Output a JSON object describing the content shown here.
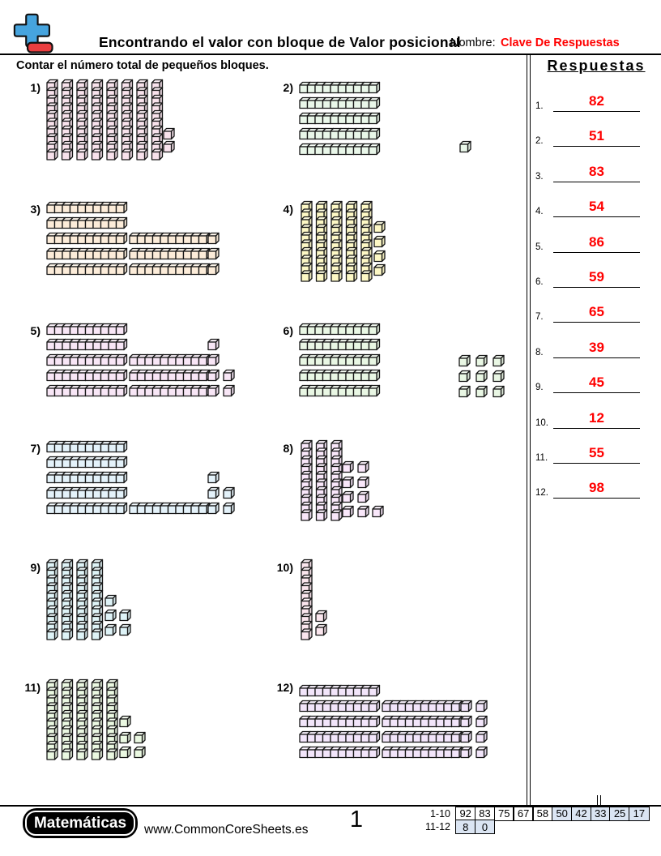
{
  "header": {
    "title": "Encontrando el valor con bloque de Valor posicional",
    "name_label": "Nombre:",
    "name_value": "Clave De Respuestas",
    "instruction": "Contar el número total de pequeños bloques."
  },
  "answers": {
    "heading": "Respuestas",
    "items": [
      {
        "n": "1.",
        "v": "82"
      },
      {
        "n": "2.",
        "v": "51"
      },
      {
        "n": "3.",
        "v": "83"
      },
      {
        "n": "4.",
        "v": "54"
      },
      {
        "n": "5.",
        "v": "86"
      },
      {
        "n": "6.",
        "v": "59"
      },
      {
        "n": "7.",
        "v": "65"
      },
      {
        "n": "8.",
        "v": "39"
      },
      {
        "n": "9.",
        "v": "45"
      },
      {
        "n": "10.",
        "v": "12"
      },
      {
        "n": "11.",
        "v": "55"
      },
      {
        "n": "12.",
        "v": "98"
      }
    ]
  },
  "problems": [
    {
      "label": "1)",
      "tens": 8,
      "ones": 2,
      "fill": "#f8e2ec",
      "vrods": [
        [
          2,
          6
        ],
        [
          20.5,
          6
        ],
        [
          39,
          6
        ],
        [
          57.5,
          6
        ],
        [
          76,
          6
        ],
        [
          94.5,
          6
        ],
        [
          113,
          6
        ],
        [
          131.5,
          6
        ]
      ],
      "hrods": [],
      "units": [
        [
          146,
          66
        ],
        [
          146,
          82
        ]
      ]
    },
    {
      "label": "2)",
      "tens": 5,
      "ones": 1,
      "fill": "#e9f7e9",
      "vrods": [],
      "hrods": [
        [
          2,
          9
        ],
        [
          2,
          28
        ],
        [
          2,
          47
        ],
        [
          2,
          66
        ],
        [
          2,
          85
        ]
      ],
      "units": [
        [
          200,
          82
        ]
      ]
    },
    {
      "label": "3)",
      "tens": 8,
      "ones": 3,
      "fill": "#fcecd9",
      "vrods": [],
      "hrods": [
        [
          2,
          7
        ],
        [
          2,
          26
        ],
        [
          2,
          45
        ],
        [
          104,
          45
        ],
        [
          2,
          64
        ],
        [
          104,
          64
        ],
        [
          2,
          83
        ],
        [
          104,
          83
        ]
      ],
      "units": [
        [
          201,
          45
        ],
        [
          201,
          64
        ],
        [
          201,
          83
        ]
      ]
    },
    {
      "label": "4)",
      "tens": 5,
      "ones": 4,
      "fill": "#fdf8c5",
      "vrods": [
        [
          4,
          6
        ],
        [
          22.5,
          6
        ],
        [
          41,
          6
        ],
        [
          59.5,
          6
        ],
        [
          78,
          6
        ]
      ],
      "hrods": [],
      "units": [
        [
          94,
          31
        ],
        [
          94,
          49
        ],
        [
          94,
          67
        ],
        [
          94,
          84
        ]
      ]
    },
    {
      "label": "5)",
      "tens": 8,
      "ones": 6,
      "fill": "#f8e6f6",
      "vrods": [],
      "hrods": [
        [
          2,
          7
        ],
        [
          2,
          26
        ],
        [
          2,
          45
        ],
        [
          104,
          45
        ],
        [
          2,
          64
        ],
        [
          104,
          64
        ],
        [
          2,
          83
        ],
        [
          104,
          83
        ]
      ],
      "units": [
        [
          201,
          26
        ],
        [
          201,
          45
        ],
        [
          201,
          64
        ],
        [
          220,
          64
        ],
        [
          201,
          83
        ],
        [
          220,
          83
        ]
      ]
    },
    {
      "label": "6)",
      "tens": 5,
      "ones": 9,
      "fill": "#e9f7e4",
      "vrods": [],
      "hrods": [
        [
          2,
          7
        ],
        [
          2,
          26
        ],
        [
          2,
          45
        ],
        [
          2,
          64
        ],
        [
          2,
          83
        ]
      ],
      "units": [
        [
          199,
          46
        ],
        [
          220,
          46
        ],
        [
          241,
          46
        ],
        [
          199,
          65
        ],
        [
          220,
          65
        ],
        [
          241,
          65
        ],
        [
          199,
          84
        ],
        [
          220,
          84
        ],
        [
          241,
          84
        ]
      ]
    },
    {
      "label": "7)",
      "tens": 6,
      "ones": 5,
      "fill": "#e4f2fa",
      "vrods": [],
      "hrods": [
        [
          2,
          7
        ],
        [
          2,
          26
        ],
        [
          2,
          45
        ],
        [
          2,
          64
        ],
        [
          2,
          83
        ],
        [
          104,
          83
        ]
      ],
      "units": [
        [
          201,
          45
        ],
        [
          201,
          64
        ],
        [
          220,
          64
        ],
        [
          201,
          83
        ],
        [
          220,
          83
        ]
      ]
    },
    {
      "label": "8)",
      "tens": 3,
      "ones": 9,
      "fill": "#f9e7fa",
      "vrods": [
        [
          4,
          6
        ],
        [
          22.5,
          6
        ],
        [
          41,
          6
        ]
      ],
      "hrods": [],
      "units": [
        [
          55,
          32
        ],
        [
          74,
          32
        ],
        [
          55,
          51
        ],
        [
          74,
          51
        ],
        [
          55,
          69
        ],
        [
          74,
          69
        ],
        [
          55,
          87
        ],
        [
          74,
          87
        ],
        [
          92,
          87
        ]
      ]
    },
    {
      "label": "9)",
      "tens": 4,
      "ones": 5,
      "fill": "#def3f7",
      "vrods": [
        [
          2,
          6
        ],
        [
          20.5,
          6
        ],
        [
          39,
          6
        ],
        [
          57.5,
          6
        ]
      ],
      "hrods": [],
      "units": [
        [
          74,
          50
        ],
        [
          74,
          68
        ],
        [
          92,
          68
        ],
        [
          74,
          86
        ],
        [
          92,
          86
        ]
      ]
    },
    {
      "label": "10)",
      "tens": 1,
      "ones": 2,
      "fill": "#fbe6ee",
      "vrods": [
        [
          4,
          6
        ]
      ],
      "hrods": [],
      "units": [
        [
          22,
          69
        ],
        [
          22,
          86
        ]
      ]
    },
    {
      "label": "11)",
      "tens": 5,
      "ones": 5,
      "fill": "#eaf8e1",
      "vrods": [
        [
          2,
          6
        ],
        [
          20.5,
          6
        ],
        [
          39,
          6
        ],
        [
          57.5,
          6
        ],
        [
          76,
          6
        ]
      ],
      "hrods": [],
      "units": [
        [
          92,
          51
        ],
        [
          92,
          71
        ],
        [
          110,
          71
        ],
        [
          92,
          89
        ],
        [
          110,
          89
        ]
      ]
    },
    {
      "label": "12)",
      "tens": 9,
      "ones": 8,
      "fill": "#f2e5fa",
      "vrods": [],
      "hrods": [
        [
          2,
          13
        ],
        [
          2,
          32
        ],
        [
          104,
          32
        ],
        [
          2,
          51
        ],
        [
          104,
          51
        ],
        [
          2,
          70
        ],
        [
          104,
          70
        ],
        [
          2,
          89
        ],
        [
          104,
          89
        ]
      ],
      "units": [
        [
          201,
          32
        ],
        [
          220,
          32
        ],
        [
          201,
          51
        ],
        [
          220,
          51
        ],
        [
          201,
          70
        ],
        [
          220,
          70
        ],
        [
          201,
          89
        ],
        [
          220,
          89
        ]
      ]
    }
  ],
  "footer": {
    "brand": "Matemáticas",
    "site": "www.CommonCoreSheets.es",
    "page_number": "1",
    "score_rows": [
      {
        "label": "1-10",
        "cells": [
          {
            "v": "92",
            "hl": false
          },
          {
            "v": "83",
            "hl": false
          },
          {
            "v": "75",
            "hl": false
          },
          {
            "v": "67",
            "hl": false
          },
          {
            "v": "58",
            "hl": false
          },
          {
            "v": "50",
            "hl": true
          },
          {
            "v": "42",
            "hl": true
          },
          {
            "v": "33",
            "hl": true
          },
          {
            "v": "25",
            "hl": true
          },
          {
            "v": "17",
            "hl": true
          }
        ]
      },
      {
        "label": "11-12",
        "cells": [
          {
            "v": "8",
            "hl": true
          },
          {
            "v": "0",
            "hl": true
          }
        ]
      }
    ]
  },
  "colors": {
    "answer_red": "#ff0000",
    "score_highlight": "#dbe5f3",
    "logo_plus_blue": "#46a4de",
    "logo_minus_red": "#ea3e40"
  }
}
